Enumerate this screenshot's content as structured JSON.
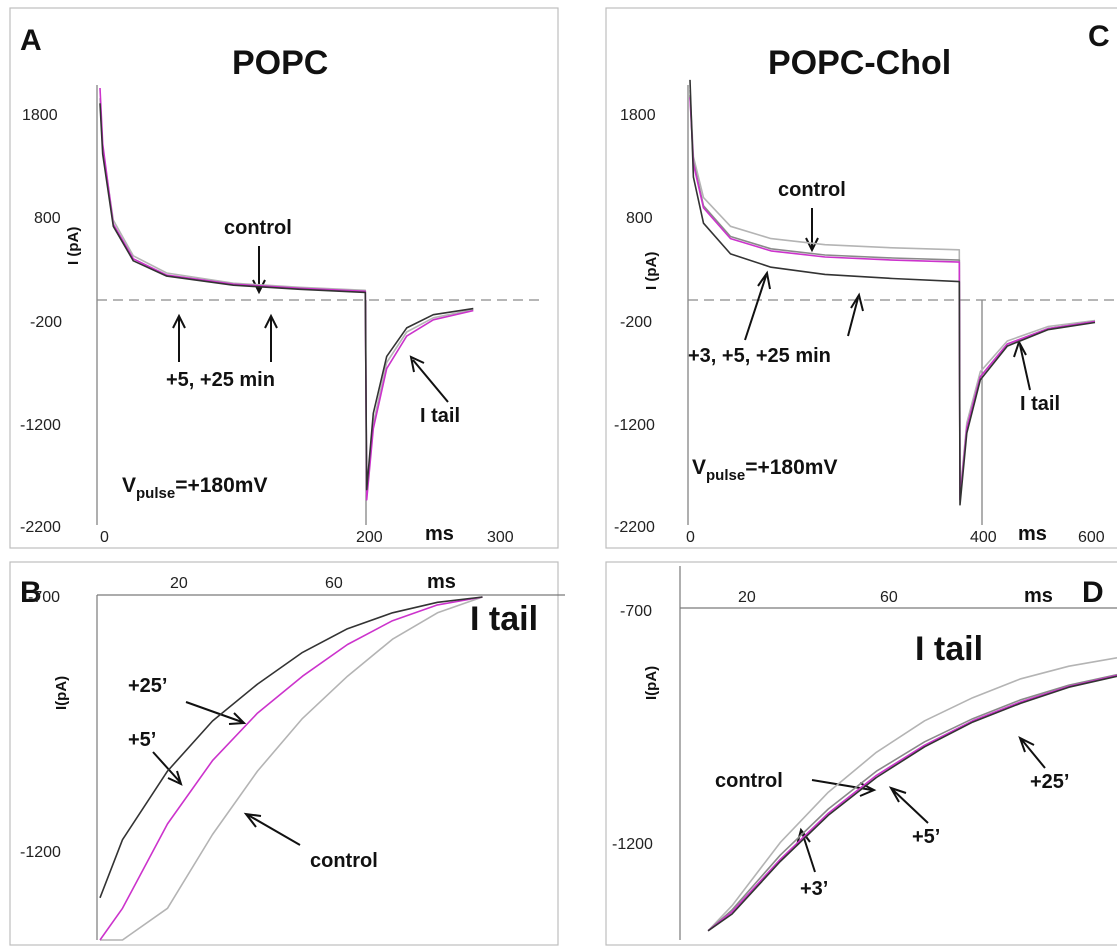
{
  "colors": {
    "control": "#b4b4b4",
    "plus3": "#8a8a8a",
    "plus5": "#cc33cc",
    "plus25": "#333333"
  },
  "chart_data": [
    {
      "panel": "A",
      "type": "line",
      "title": "POPC",
      "ylabel": "I (pA)",
      "xunit": "ms",
      "yticks": [
        "1800",
        "800",
        "-200",
        "-1200",
        "-2200"
      ],
      "xticks": [
        "0",
        "200",
        "300"
      ],
      "xlim": [
        0,
        300
      ],
      "ylim": [
        -2200,
        2000
      ],
      "pulse_end": 200,
      "pulse_voltage": {
        "main": "V",
        "sub": "pulse",
        "rest": "=+180mV"
      },
      "annotations": [
        "control",
        "+5, +25 min",
        "I tail"
      ],
      "series": [
        {
          "name": "control",
          "x": [
            0,
            2,
            10,
            25,
            50,
            100,
            150,
            199,
            200,
            205,
            215,
            230,
            250,
            280
          ],
          "y": [
            1900,
            1400,
            700,
            350,
            180,
            80,
            40,
            10,
            -2000,
            -1300,
            -700,
            -400,
            -260,
            -180
          ]
        },
        {
          "name": "+5 min",
          "x": [
            0,
            2,
            10,
            25,
            50,
            100,
            150,
            199,
            200,
            205,
            215,
            230,
            250,
            280
          ],
          "y": [
            2000,
            1450,
            660,
            320,
            160,
            70,
            30,
            0,
            -2050,
            -1350,
            -760,
            -440,
            -280,
            -190
          ]
        },
        {
          "name": "+25 min",
          "x": [
            0,
            2,
            10,
            25,
            50,
            100,
            150,
            199,
            200,
            205,
            215,
            230,
            250,
            280
          ],
          "y": [
            1850,
            1350,
            640,
            300,
            150,
            60,
            20,
            -10,
            -1950,
            -1200,
            -640,
            -360,
            -230,
            -170
          ]
        }
      ]
    },
    {
      "panel": "B",
      "type": "line",
      "title": "I tail",
      "ylabel": "I(pA)",
      "xunit": "ms",
      "yticks": [
        "-700",
        "-1200"
      ],
      "xticks": [
        "20",
        "60"
      ],
      "xlim": [
        0,
        90
      ],
      "ylim": [
        -1350,
        -700
      ],
      "annotations": [
        "+25’",
        "+5’",
        "control"
      ],
      "series": [
        {
          "name": "control",
          "x": [
            0,
            5,
            15,
            25,
            35,
            45,
            55,
            65,
            75,
            85
          ],
          "y": [
            -1350,
            -1350,
            -1290,
            -1150,
            -1030,
            -930,
            -850,
            -780,
            -730,
            -700
          ]
        },
        {
          "name": "+5’",
          "x": [
            0,
            5,
            15,
            25,
            35,
            45,
            55,
            65,
            75,
            85
          ],
          "y": [
            -1350,
            -1290,
            -1130,
            -1010,
            -920,
            -850,
            -790,
            -745,
            -715,
            -700
          ]
        },
        {
          "name": "+25’",
          "x": [
            0,
            5,
            15,
            25,
            35,
            45,
            55,
            65,
            75,
            85
          ],
          "y": [
            -1270,
            -1160,
            -1030,
            -935,
            -865,
            -805,
            -760,
            -730,
            -710,
            -700
          ]
        }
      ]
    },
    {
      "panel": "C",
      "type": "line",
      "title": "POPC-Chol",
      "ylabel": "I (pA)",
      "xunit": "ms",
      "yticks": [
        "1800",
        "800",
        "-200",
        "-1200",
        "-2200"
      ],
      "xticks": [
        "0",
        "400",
        "600"
      ],
      "xlim": [
        0,
        600
      ],
      "ylim": [
        -2200,
        2000
      ],
      "pulse_end": 400,
      "pulse_voltage": {
        "main": "V",
        "sub": "pulse",
        "rest": "=+180mV"
      },
      "annotations": [
        "control",
        "+3, +5, +25 min",
        "I tail"
      ],
      "series": [
        {
          "name": "control",
          "x": [
            0,
            5,
            20,
            60,
            120,
            200,
            300,
            399,
            400,
            410,
            430,
            470,
            530,
            600
          ],
          "y": [
            1950,
            1300,
            900,
            620,
            500,
            440,
            410,
            390,
            -2000,
            -1300,
            -800,
            -500,
            -360,
            -300
          ]
        },
        {
          "name": "+3 min",
          "x": [
            0,
            5,
            20,
            60,
            120,
            200,
            300,
            399,
            400,
            410,
            430,
            470,
            530,
            600
          ],
          "y": [
            1900,
            1250,
            820,
            520,
            400,
            340,
            310,
            290,
            -2050,
            -1350,
            -850,
            -530,
            -380,
            -310
          ]
        },
        {
          "name": "+5 min",
          "x": [
            0,
            5,
            20,
            60,
            120,
            200,
            300,
            399,
            400,
            410,
            430,
            470,
            530,
            600
          ],
          "y": [
            1880,
            1230,
            800,
            500,
            380,
            320,
            290,
            270,
            -2050,
            -1350,
            -850,
            -530,
            -380,
            -310
          ]
        },
        {
          "name": "+25 min",
          "x": [
            0,
            5,
            20,
            60,
            120,
            200,
            300,
            399,
            400,
            410,
            430,
            470,
            530,
            600
          ],
          "y": [
            2050,
            1100,
            650,
            350,
            220,
            150,
            110,
            80,
            -2100,
            -1400,
            -880,
            -550,
            -390,
            -320
          ]
        }
      ]
    },
    {
      "panel": "D",
      "type": "line",
      "title": "I tail",
      "ylabel": "I(pA)",
      "xunit": "ms",
      "yticks": [
        "-700",
        "-1200"
      ],
      "xticks": [
        "20",
        "60"
      ],
      "xlim": [
        0,
        90
      ],
      "ylim": [
        -1400,
        -650
      ],
      "annotations": [
        "control",
        "+25’",
        "+5’",
        "+3’"
      ],
      "series": [
        {
          "name": "control",
          "x": [
            5,
            10,
            20,
            30,
            40,
            50,
            60,
            70,
            80,
            90
          ],
          "y": [
            -1390,
            -1330,
            -1180,
            -1060,
            -965,
            -890,
            -835,
            -790,
            -760,
            -740
          ]
        },
        {
          "name": "+3’",
          "x": [
            5,
            10,
            20,
            30,
            40,
            50,
            60,
            70,
            80,
            90
          ],
          "y": [
            -1390,
            -1340,
            -1210,
            -1100,
            -1010,
            -940,
            -885,
            -840,
            -805,
            -780
          ]
        },
        {
          "name": "+5’",
          "x": [
            5,
            10,
            20,
            30,
            40,
            50,
            60,
            70,
            80,
            90
          ],
          "y": [
            -1390,
            -1345,
            -1220,
            -1110,
            -1020,
            -948,
            -890,
            -845,
            -808,
            -782
          ]
        },
        {
          "name": "+25’",
          "x": [
            5,
            10,
            20,
            30,
            40,
            50,
            60,
            70,
            80,
            90
          ],
          "y": [
            -1390,
            -1350,
            -1225,
            -1115,
            -1025,
            -952,
            -893,
            -848,
            -810,
            -784
          ]
        }
      ]
    }
  ]
}
